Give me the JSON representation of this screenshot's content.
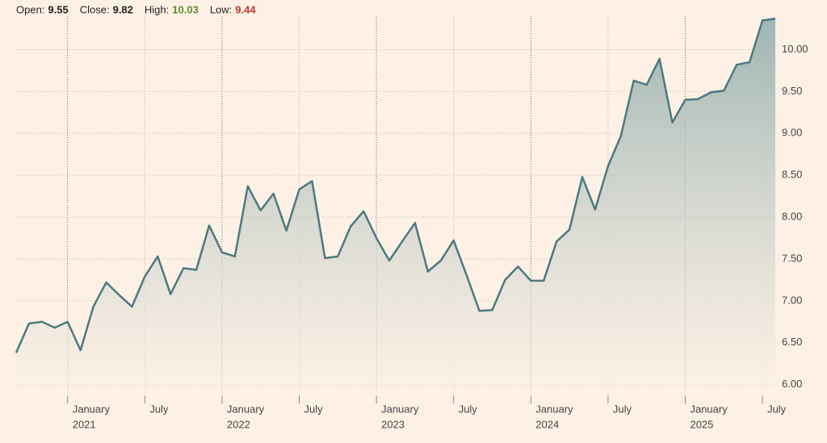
{
  "chart_data": {
    "type": "area",
    "header": [
      {
        "label": "Open:",
        "value": 9.55,
        "color": "#222222"
      },
      {
        "label": "Close:",
        "value": 9.82,
        "color": "#222222"
      },
      {
        "label": "High:",
        "value": 10.03,
        "color": "#5b8c2a"
      },
      {
        "label": "Low:",
        "value": 9.44,
        "color": "#c0392b"
      }
    ],
    "x": [
      "2020-09",
      "2020-10",
      "2020-11",
      "2020-12",
      "2021-01",
      "2021-02",
      "2021-03",
      "2021-04",
      "2021-05",
      "2021-06",
      "2021-07",
      "2021-08",
      "2021-09",
      "2021-10",
      "2021-11",
      "2021-12",
      "2022-01",
      "2022-02",
      "2022-03",
      "2022-04",
      "2022-05",
      "2022-06",
      "2022-07",
      "2022-08",
      "2022-09",
      "2022-10",
      "2022-11",
      "2022-12",
      "2023-01",
      "2023-02",
      "2023-03",
      "2023-04",
      "2023-05",
      "2023-06",
      "2023-07",
      "2023-08",
      "2023-09",
      "2023-10",
      "2023-11",
      "2023-12",
      "2024-01",
      "2024-02",
      "2024-03",
      "2024-04",
      "2024-05",
      "2024-06",
      "2024-07",
      "2024-08",
      "2024-09",
      "2024-10",
      "2024-11",
      "2024-12",
      "2025-01",
      "2025-02",
      "2025-03",
      "2025-04",
      "2025-05",
      "2025-06",
      "2025-07",
      "2025-08"
    ],
    "values": [
      6.38,
      6.73,
      6.75,
      6.68,
      6.75,
      6.41,
      6.93,
      7.22,
      7.07,
      6.93,
      7.29,
      7.53,
      7.08,
      7.39,
      7.37,
      7.9,
      7.58,
      7.53,
      8.37,
      8.08,
      8.28,
      7.84,
      8.33,
      8.43,
      7.51,
      7.53,
      7.89,
      8.07,
      7.75,
      7.48,
      7.71,
      7.93,
      7.35,
      7.48,
      7.72,
      7.31,
      6.88,
      6.89,
      7.25,
      7.41,
      7.24,
      7.24,
      7.71,
      7.85,
      8.48,
      8.09,
      8.61,
      8.97,
      9.63,
      9.58,
      9.89,
      9.13,
      9.4,
      9.41,
      9.49,
      9.51,
      9.82,
      9.85,
      10.35,
      10.37
    ],
    "color": "#4b7a80",
    "xlim": [
      "2020-09",
      "2025-08"
    ],
    "xticks": [
      {
        "value": "2021-01",
        "label": "January"
      },
      {
        "value": "2021-07",
        "label": "July"
      },
      {
        "value": "2022-01",
        "label": "January"
      },
      {
        "value": "2022-07",
        "label": "July"
      },
      {
        "value": "2023-01",
        "label": "January"
      },
      {
        "value": "2023-07",
        "label": "July"
      },
      {
        "value": "2024-01",
        "label": "January"
      },
      {
        "value": "2024-07",
        "label": "July"
      },
      {
        "value": "2025-01",
        "label": "January"
      },
      {
        "value": "2025-07",
        "label": "July"
      }
    ],
    "xticks_year": [
      {
        "value": "2021-01",
        "label": "2021"
      },
      {
        "value": "2022-01",
        "label": "2022"
      },
      {
        "value": "2023-01",
        "label": "2023"
      },
      {
        "value": "2024-01",
        "label": "2024"
      },
      {
        "value": "2025-01",
        "label": "2025"
      }
    ],
    "ylim": [
      5.9,
      10.4
    ],
    "yticks": [
      {
        "value": 6,
        "label": "6.00"
      },
      {
        "value": 6.5,
        "label": "6.50"
      },
      {
        "value": 7,
        "label": "7.00"
      },
      {
        "value": 7.5,
        "label": "7.50"
      },
      {
        "value": 8,
        "label": "8.00"
      },
      {
        "value": 8.5,
        "label": "8.50"
      },
      {
        "value": 9,
        "label": "9.00"
      },
      {
        "value": 9.5,
        "label": "9.50"
      },
      {
        "value": 10,
        "label": "10.00"
      }
    ],
    "grid": true
  }
}
